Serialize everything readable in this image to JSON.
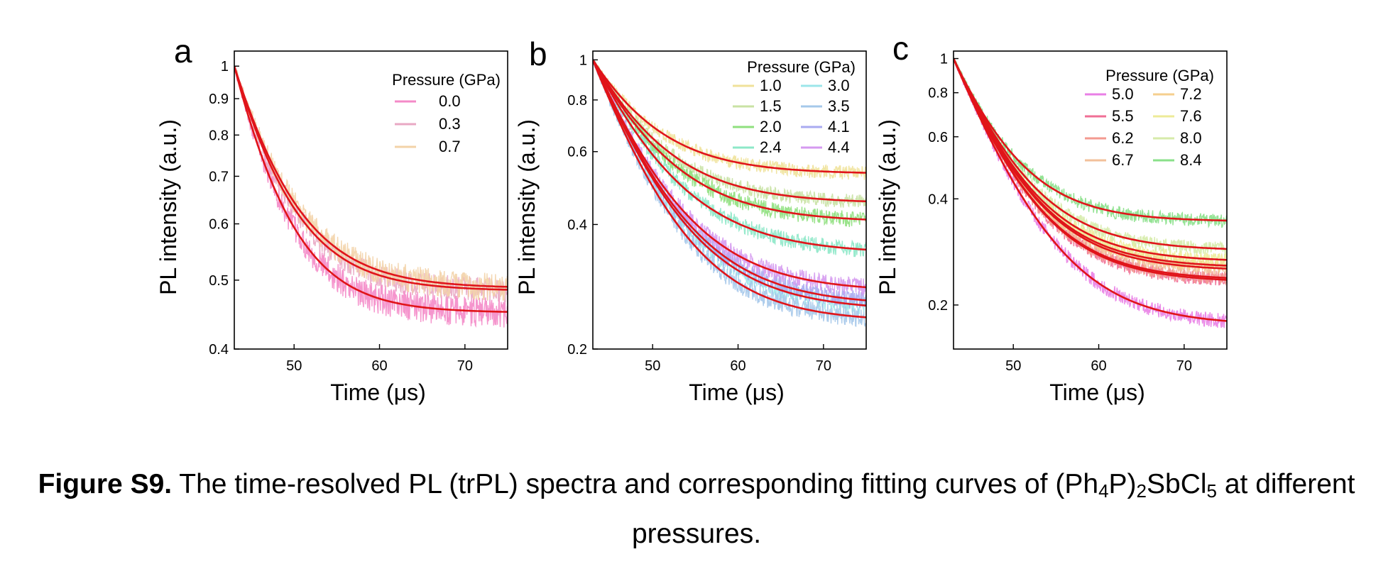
{
  "caption": {
    "label": "Figure S9.",
    "before": " The time-resolved PL (trPL) spectra and corresponding fitting curves of (Ph",
    "sub1": "4",
    "mid1": "P)",
    "sub2": "2",
    "mid2": "SbCl",
    "sub3": "5",
    "after": " at different pressures."
  },
  "colors": {
    "fit": "#e0141a",
    "p0_0": "#f48ac8",
    "p0_3": "#e9a8c4",
    "p0_7": "#f3d3a8",
    "p1_0": "#f0e29a",
    "p1_5": "#c9e2a4",
    "p2_0": "#8fe07e",
    "p2_4": "#8de8c8",
    "p3_0": "#9ce6ea",
    "p3_5": "#a5c8ea",
    "p4_1": "#a9aaf0",
    "p4_4": "#d59af0",
    "p5_0": "#e97fe6",
    "p5_5": "#f06f96",
    "p6_2": "#f39a90",
    "p6_7": "#f2c09a",
    "p7_2": "#f5cf8e",
    "p7_6": "#eeeb98",
    "p8_0": "#d6ebaa",
    "p8_4": "#8ae08a"
  },
  "chart_data": [
    {
      "type": "line",
      "panel": "a",
      "xlabel": "Time (μs)",
      "ylabel": "PL intensity (a.u.)",
      "xlim": [
        43,
        75
      ],
      "ylim": [
        0.4,
        1.05
      ],
      "yscale": "log",
      "xticks": [
        50,
        60,
        70
      ],
      "yticks": [
        0.4,
        0.5,
        0.6,
        0.7,
        0.8,
        0.9,
        1
      ],
      "yticklabels": [
        "0.4",
        "0.5",
        "0.6",
        "0.7",
        "0.8",
        "0.9",
        "1"
      ],
      "legend": {
        "title": "Pressure (GPa)",
        "placement": "top-right",
        "columns": 1
      },
      "series": [
        {
          "name": "0.0",
          "color_key": "p0_0",
          "plateau": 0.45,
          "tau": 5.2,
          "noise": 0.05
        },
        {
          "name": "0.3",
          "color_key": "p0_3",
          "plateau": 0.483,
          "tau": 5.6,
          "noise": 0.04
        },
        {
          "name": "0.7",
          "color_key": "p0_7",
          "plateau": 0.487,
          "tau": 5.9,
          "noise": 0.045
        }
      ]
    },
    {
      "type": "line",
      "panel": "b",
      "xlabel": "Time (μs)",
      "ylabel": "PL intensity (a.u.)",
      "xlim": [
        43,
        75
      ],
      "ylim": [
        0.2,
        1.05
      ],
      "yscale": "log",
      "xticks": [
        50,
        60,
        70
      ],
      "yticks": [
        0.2,
        0.4,
        0.6,
        0.8,
        1
      ],
      "yticklabels": [
        "0.2",
        "0.4",
        "0.6",
        "0.8",
        "1"
      ],
      "legend": {
        "title": "Pressure (GPa)",
        "placement": "top-right",
        "columns": 2
      },
      "series": [
        {
          "name": "1.0",
          "color_key": "p1_0",
          "plateau": 0.53,
          "tau": 6.5,
          "noise": 0.04
        },
        {
          "name": "1.5",
          "color_key": "p1_5",
          "plateau": 0.45,
          "tau": 6.8,
          "noise": 0.04
        },
        {
          "name": "2.0",
          "color_key": "p2_0",
          "plateau": 0.405,
          "tau": 7.0,
          "noise": 0.045
        },
        {
          "name": "2.4",
          "color_key": "p2_4",
          "plateau": 0.34,
          "tau": 7.2,
          "noise": 0.045
        },
        {
          "name": "3.0",
          "color_key": "p3_0",
          "plateau": 0.248,
          "tau": 6.8,
          "noise": 0.05
        },
        {
          "name": "3.5",
          "color_key": "p3_5",
          "plateau": 0.233,
          "tau": 6.5,
          "noise": 0.055
        },
        {
          "name": "4.1",
          "color_key": "p4_1",
          "plateau": 0.255,
          "tau": 6.9,
          "noise": 0.05
        },
        {
          "name": "4.4",
          "color_key": "p4_4",
          "plateau": 0.275,
          "tau": 6.9,
          "noise": 0.05
        }
      ]
    },
    {
      "type": "line",
      "panel": "c",
      "xlabel": "Time (μs)",
      "ylabel": "PL intensity (a.u.)",
      "xlim": [
        43,
        75
      ],
      "ylim": [
        0.15,
        1.05
      ],
      "yscale": "log",
      "xticks": [
        50,
        60,
        70
      ],
      "yticks": [
        0.2,
        0.4,
        0.6,
        0.8,
        1
      ],
      "yticklabels": [
        "0.2",
        "0.4",
        "0.6",
        "0.8",
        "1"
      ],
      "legend": {
        "title": "Pressure (GPa)",
        "placement": "top-right",
        "columns": 2
      },
      "series": [
        {
          "name": "5.0",
          "color_key": "p5_0",
          "plateau": 0.175,
          "tau": 6.3,
          "noise": 0.05
        },
        {
          "name": "5.5",
          "color_key": "p5_5",
          "plateau": 0.232,
          "tau": 6.0,
          "noise": 0.045
        },
        {
          "name": "6.2",
          "color_key": "p6_2",
          "plateau": 0.235,
          "tau": 6.0,
          "noise": 0.045
        },
        {
          "name": "6.7",
          "color_key": "p6_7",
          "plateau": 0.25,
          "tau": 6.0,
          "noise": 0.045
        },
        {
          "name": "7.2",
          "color_key": "p7_2",
          "plateau": 0.255,
          "tau": 6.0,
          "noise": 0.045
        },
        {
          "name": "7.6",
          "color_key": "p7_6",
          "plateau": 0.265,
          "tau": 6.0,
          "noise": 0.045
        },
        {
          "name": "8.0",
          "color_key": "p8_0",
          "plateau": 0.285,
          "tau": 6.0,
          "noise": 0.045
        },
        {
          "name": "8.4",
          "color_key": "p8_4",
          "plateau": 0.345,
          "tau": 5.6,
          "noise": 0.045
        }
      ]
    }
  ]
}
